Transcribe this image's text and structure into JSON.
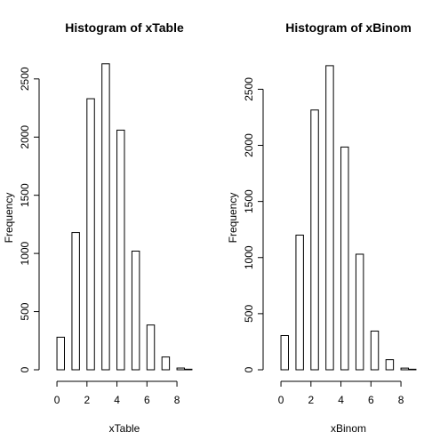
{
  "chart_data": [
    {
      "type": "bar",
      "title": "Histogram of xTable",
      "xlabel": "xTable",
      "ylabel": "Frequency",
      "xlim": [
        -0.3,
        9.3
      ],
      "ylim": [
        0,
        2720
      ],
      "bin_edges": [
        0,
        0.5,
        1,
        1.5,
        2,
        2.5,
        3,
        3.5,
        4,
        4.5,
        5,
        5.5,
        6,
        6.5,
        7,
        7.5,
        8,
        8.5,
        9
      ],
      "values": [
        280,
        0,
        1180,
        0,
        2330,
        0,
        2630,
        0,
        2060,
        0,
        1020,
        0,
        385,
        0,
        110,
        0,
        15,
        5
      ],
      "x_ticks": [
        0,
        2,
        4,
        6,
        8
      ],
      "x_tick_labels": [
        "0",
        "2",
        "4",
        "6",
        "8"
      ],
      "y_ticks": [
        0,
        500,
        1000,
        1500,
        2000,
        2500
      ],
      "y_tick_labels": [
        "0",
        "500",
        "1000",
        "1500",
        "2000",
        "2500"
      ],
      "grid": false
    },
    {
      "type": "bar",
      "title": "Histogram of xBinom",
      "xlabel": "xBinom",
      "ylabel": "Frequency",
      "xlim": [
        -0.3,
        9.3
      ],
      "ylim": [
        0,
        2820
      ],
      "bin_edges": [
        0,
        0.5,
        1,
        1.5,
        2,
        2.5,
        3,
        3.5,
        4,
        4.5,
        5,
        5.5,
        6,
        6.5,
        7,
        7.5,
        8,
        8.5,
        9
      ],
      "values": [
        305,
        0,
        1200,
        0,
        2315,
        0,
        2710,
        0,
        1985,
        0,
        1030,
        0,
        345,
        0,
        90,
        0,
        15,
        5
      ],
      "x_ticks": [
        0,
        2,
        4,
        6,
        8
      ],
      "x_tick_labels": [
        "0",
        "2",
        "4",
        "6",
        "8"
      ],
      "y_ticks": [
        0,
        500,
        1000,
        1500,
        2000,
        2500
      ],
      "y_tick_labels": [
        "0",
        "500",
        "1000",
        "1500",
        "2000",
        "2500"
      ],
      "grid": false
    }
  ]
}
